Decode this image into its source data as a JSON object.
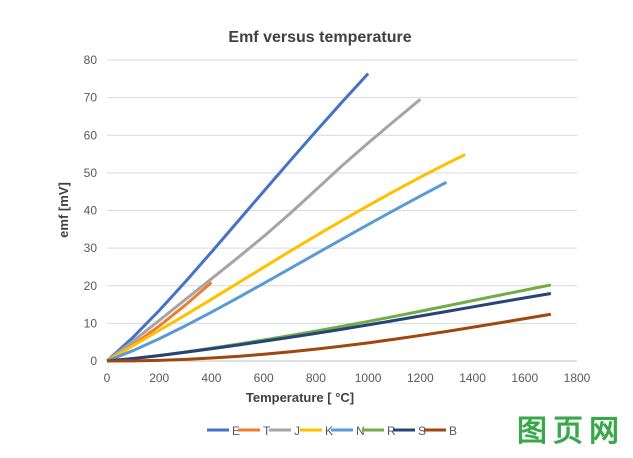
{
  "chart_data": {
    "type": "line",
    "title": "Emf versus temperature",
    "xlabel": "Temperature [ °C]",
    "ylabel": "emf [mV]",
    "xlim": [
      0,
      1800
    ],
    "ylim": [
      0,
      80
    ],
    "xticks": [
      0,
      200,
      400,
      600,
      800,
      1000,
      1200,
      1400,
      1600,
      1800
    ],
    "yticks": [
      0,
      10,
      20,
      30,
      40,
      50,
      60,
      70,
      80
    ],
    "grid": "horizontal",
    "legend_position": "bottom",
    "series": [
      {
        "name": "E",
        "color": "#4472c4",
        "x": [
          0,
          100,
          200,
          300,
          400,
          500,
          600,
          700,
          800,
          900,
          1000
        ],
        "y": [
          0,
          6.32,
          13.42,
          21.03,
          28.95,
          37.0,
          45.09,
          53.11,
          61.02,
          68.79,
          76.37
        ]
      },
      {
        "name": "T",
        "color": "#ed7d31",
        "x": [
          0,
          100,
          200,
          300,
          400
        ],
        "y": [
          0,
          4.28,
          9.29,
          14.86,
          20.87
        ]
      },
      {
        "name": "J",
        "color": "#a5a5a5",
        "x": [
          0,
          100,
          200,
          300,
          400,
          500,
          600,
          700,
          800,
          900,
          1000,
          1100,
          1200
        ],
        "y": [
          0,
          5.27,
          10.78,
          16.33,
          21.85,
          27.39,
          33.1,
          39.13,
          45.49,
          51.88,
          57.94,
          63.79,
          69.55
        ]
      },
      {
        "name": "K",
        "color": "#ffc000",
        "x": [
          0,
          100,
          200,
          300,
          400,
          500,
          600,
          700,
          800,
          900,
          1000,
          1100,
          1200,
          1300,
          1372
        ],
        "y": [
          0,
          4.1,
          8.14,
          12.21,
          16.4,
          20.64,
          24.9,
          29.13,
          33.28,
          37.33,
          41.28,
          45.12,
          48.84,
          52.41,
          54.89
        ]
      },
      {
        "name": "N",
        "color": "#5b9bd5",
        "x": [
          0,
          100,
          200,
          300,
          400,
          500,
          600,
          700,
          800,
          900,
          1000,
          1100,
          1200,
          1300
        ],
        "y": [
          0,
          2.77,
          5.91,
          9.34,
          12.97,
          16.75,
          20.61,
          24.53,
          28.46,
          32.37,
          36.26,
          40.09,
          43.85,
          47.51
        ]
      },
      {
        "name": "R",
        "color": "#70ad47",
        "x": [
          0,
          100,
          200,
          300,
          400,
          500,
          600,
          700,
          800,
          900,
          1000,
          1100,
          1200,
          1300,
          1400,
          1500,
          1600,
          1700
        ],
        "y": [
          0,
          0.65,
          1.47,
          2.4,
          3.41,
          4.47,
          5.58,
          6.74,
          7.95,
          9.2,
          10.51,
          11.85,
          13.23,
          14.62,
          16.04,
          17.45,
          18.84,
          20.22
        ]
      },
      {
        "name": "S",
        "color": "#264478",
        "x": [
          0,
          100,
          200,
          300,
          400,
          500,
          600,
          700,
          800,
          900,
          1000,
          1100,
          1200,
          1300,
          1400,
          1500,
          1600,
          1700
        ],
        "y": [
          0,
          0.65,
          1.44,
          2.32,
          3.26,
          4.23,
          5.24,
          6.27,
          7.35,
          8.45,
          9.59,
          10.76,
          11.95,
          13.16,
          14.37,
          15.58,
          16.78,
          17.95
        ]
      },
      {
        "name": "B",
        "color": "#9e480e",
        "x": [
          0,
          100,
          200,
          300,
          400,
          500,
          600,
          700,
          800,
          900,
          1000,
          1100,
          1200,
          1300,
          1400,
          1500,
          1600,
          1700
        ],
        "y": [
          0,
          0.03,
          0.18,
          0.43,
          0.79,
          1.24,
          1.79,
          2.43,
          3.15,
          3.96,
          4.83,
          5.78,
          6.79,
          7.85,
          8.96,
          10.1,
          11.26,
          12.43
        ]
      }
    ]
  },
  "watermark": {
    "logo": "图页网"
  }
}
